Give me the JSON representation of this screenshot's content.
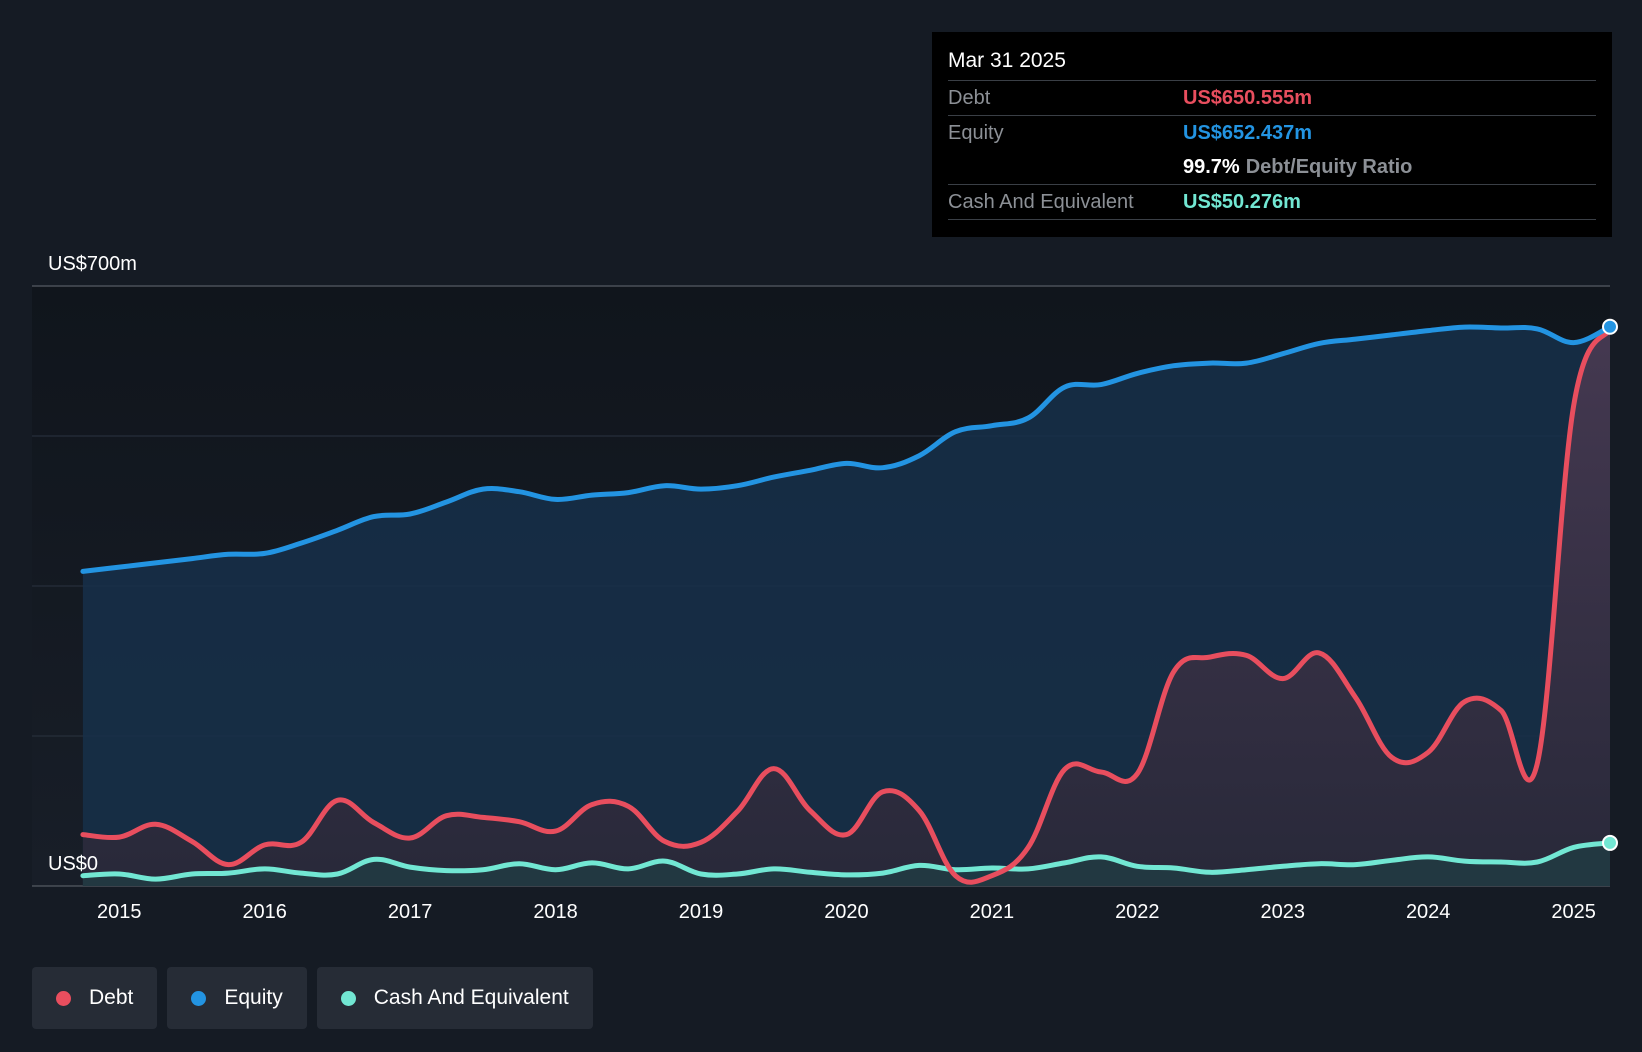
{
  "chart_data": {
    "type": "area",
    "title": "",
    "y_axis_top_label": "US$700m",
    "y_axis_bottom_label": "US$0",
    "ylim": [
      0,
      700
    ],
    "xlim": [
      2014.4,
      2025.25
    ],
    "x_tick_labels": [
      "2015",
      "2016",
      "2017",
      "2018",
      "2019",
      "2020",
      "2021",
      "2022",
      "2023",
      "2024",
      "2025"
    ],
    "x_tick_values": [
      2015,
      2016,
      2017,
      2018,
      2019,
      2020,
      2021,
      2022,
      2023,
      2024,
      2025
    ],
    "series": [
      {
        "name": "Equity",
        "color": "#2394e2",
        "points": [
          [
            2014.75,
            367
          ],
          [
            2015.0,
            372
          ],
          [
            2015.25,
            377
          ],
          [
            2015.5,
            382
          ],
          [
            2015.75,
            387
          ],
          [
            2016.0,
            388
          ],
          [
            2016.25,
            400
          ],
          [
            2016.5,
            415
          ],
          [
            2016.75,
            431
          ],
          [
            2017.0,
            434
          ],
          [
            2017.25,
            448
          ],
          [
            2017.5,
            463
          ],
          [
            2017.75,
            460
          ],
          [
            2018.0,
            451
          ],
          [
            2018.25,
            456
          ],
          [
            2018.5,
            459
          ],
          [
            2018.75,
            467
          ],
          [
            2019.0,
            463
          ],
          [
            2019.25,
            467
          ],
          [
            2019.5,
            477
          ],
          [
            2019.75,
            485
          ],
          [
            2020.0,
            493
          ],
          [
            2020.25,
            488
          ],
          [
            2020.5,
            502
          ],
          [
            2020.75,
            530
          ],
          [
            2021.0,
            537
          ],
          [
            2021.25,
            546
          ],
          [
            2021.5,
            582
          ],
          [
            2021.75,
            585
          ],
          [
            2022.0,
            598
          ],
          [
            2022.25,
            607
          ],
          [
            2022.5,
            610
          ],
          [
            2022.75,
            610
          ],
          [
            2023.0,
            621
          ],
          [
            2023.25,
            633
          ],
          [
            2023.5,
            638
          ],
          [
            2023.75,
            643
          ],
          [
            2024.0,
            648
          ],
          [
            2024.25,
            652
          ],
          [
            2024.5,
            651
          ],
          [
            2024.75,
            650
          ],
          [
            2025.0,
            634
          ],
          [
            2025.25,
            652.437
          ]
        ]
      },
      {
        "name": "Debt",
        "color": "#e84e5e",
        "points": [
          [
            2014.75,
            60
          ],
          [
            2015.0,
            57
          ],
          [
            2015.25,
            72
          ],
          [
            2015.5,
            52
          ],
          [
            2015.75,
            25
          ],
          [
            2016.0,
            48
          ],
          [
            2016.25,
            51
          ],
          [
            2016.5,
            100
          ],
          [
            2016.75,
            74
          ],
          [
            2017.0,
            56
          ],
          [
            2017.25,
            82
          ],
          [
            2017.5,
            80
          ],
          [
            2017.75,
            75
          ],
          [
            2018.0,
            64
          ],
          [
            2018.25,
            95
          ],
          [
            2018.5,
            93
          ],
          [
            2018.75,
            52
          ],
          [
            2019.0,
            51
          ],
          [
            2019.25,
            87
          ],
          [
            2019.5,
            137
          ],
          [
            2019.75,
            88
          ],
          [
            2020.0,
            60
          ],
          [
            2020.25,
            110
          ],
          [
            2020.5,
            88
          ],
          [
            2020.75,
            12
          ],
          [
            2021.0,
            12
          ],
          [
            2021.25,
            45
          ],
          [
            2021.5,
            136
          ],
          [
            2021.75,
            133
          ],
          [
            2022.0,
            131
          ],
          [
            2022.25,
            250
          ],
          [
            2022.5,
            267
          ],
          [
            2022.75,
            269
          ],
          [
            2023.0,
            242
          ],
          [
            2023.25,
            272
          ],
          [
            2023.5,
            220
          ],
          [
            2023.75,
            150
          ],
          [
            2024.0,
            156
          ],
          [
            2024.25,
            215
          ],
          [
            2024.5,
            205
          ],
          [
            2024.75,
            143
          ],
          [
            2025.0,
            560
          ],
          [
            2025.25,
            650.555
          ]
        ]
      },
      {
        "name": "Cash And Equivalent",
        "color": "#72e7d3",
        "points": [
          [
            2014.75,
            12
          ],
          [
            2015.0,
            14
          ],
          [
            2015.25,
            8
          ],
          [
            2015.5,
            14
          ],
          [
            2015.75,
            15
          ],
          [
            2016.0,
            20
          ],
          [
            2016.25,
            15
          ],
          [
            2016.5,
            14
          ],
          [
            2016.75,
            31
          ],
          [
            2017.0,
            22
          ],
          [
            2017.25,
            18
          ],
          [
            2017.5,
            19
          ],
          [
            2017.75,
            26
          ],
          [
            2018.0,
            19
          ],
          [
            2018.25,
            27
          ],
          [
            2018.5,
            20
          ],
          [
            2018.75,
            29
          ],
          [
            2019.0,
            14
          ],
          [
            2019.25,
            14
          ],
          [
            2019.5,
            20
          ],
          [
            2019.75,
            16
          ],
          [
            2020.0,
            13
          ],
          [
            2020.25,
            15
          ],
          [
            2020.5,
            24
          ],
          [
            2020.75,
            19
          ],
          [
            2021.0,
            21
          ],
          [
            2021.25,
            20
          ],
          [
            2021.5,
            27
          ],
          [
            2021.75,
            34
          ],
          [
            2022.0,
            23
          ],
          [
            2022.25,
            21
          ],
          [
            2022.5,
            16
          ],
          [
            2022.75,
            19
          ],
          [
            2023.0,
            23
          ],
          [
            2023.25,
            26
          ],
          [
            2023.5,
            25
          ],
          [
            2023.75,
            30
          ],
          [
            2024.0,
            34
          ],
          [
            2024.25,
            29
          ],
          [
            2024.5,
            28
          ],
          [
            2024.75,
            28
          ],
          [
            2025.0,
            45
          ],
          [
            2025.25,
            50.276
          ]
        ]
      }
    ],
    "legend": [
      "Debt",
      "Equity",
      "Cash And Equivalent"
    ]
  },
  "tooltip": {
    "date": "Mar 31 2025",
    "debt_label": "Debt",
    "debt_value": "US$650.555m",
    "equity_label": "Equity",
    "equity_value": "US$652.437m",
    "ratio_value": "99.7%",
    "ratio_label": "Debt/Equity Ratio",
    "cash_label": "Cash And Equivalent",
    "cash_value": "US$50.276m"
  },
  "legend": {
    "debt": "Debt",
    "equity": "Equity",
    "cash": "Cash And Equivalent"
  },
  "colors": {
    "debt": "#e84e5e",
    "equity": "#2394e2",
    "cash": "#72e7d3",
    "background": "#151b24"
  }
}
